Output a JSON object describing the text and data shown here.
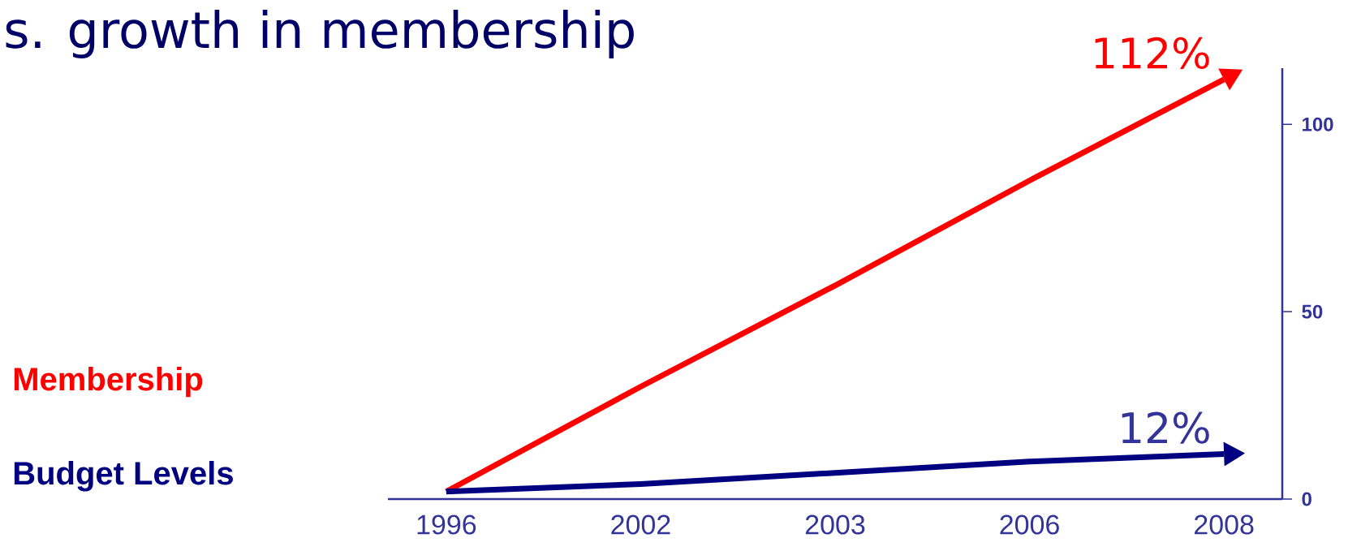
{
  "chart_data": {
    "type": "line",
    "title": "s. growth in membership",
    "categories": [
      "1996",
      "2002",
      "2003",
      "2006",
      "2008"
    ],
    "series": [
      {
        "name": "Membership",
        "color": "#ff0000",
        "values": [
          2,
          30,
          57,
          85,
          112
        ]
      },
      {
        "name": "Budget Levels",
        "color": "#000080",
        "values": [
          2,
          4,
          7,
          10,
          12
        ]
      }
    ],
    "ylim": [
      0,
      115
    ],
    "yticks": [
      0,
      50,
      100
    ],
    "legend": "left",
    "grid": false,
    "marker": "none",
    "line_style": "solid",
    "annotations": [
      "112%",
      "12%"
    ]
  }
}
